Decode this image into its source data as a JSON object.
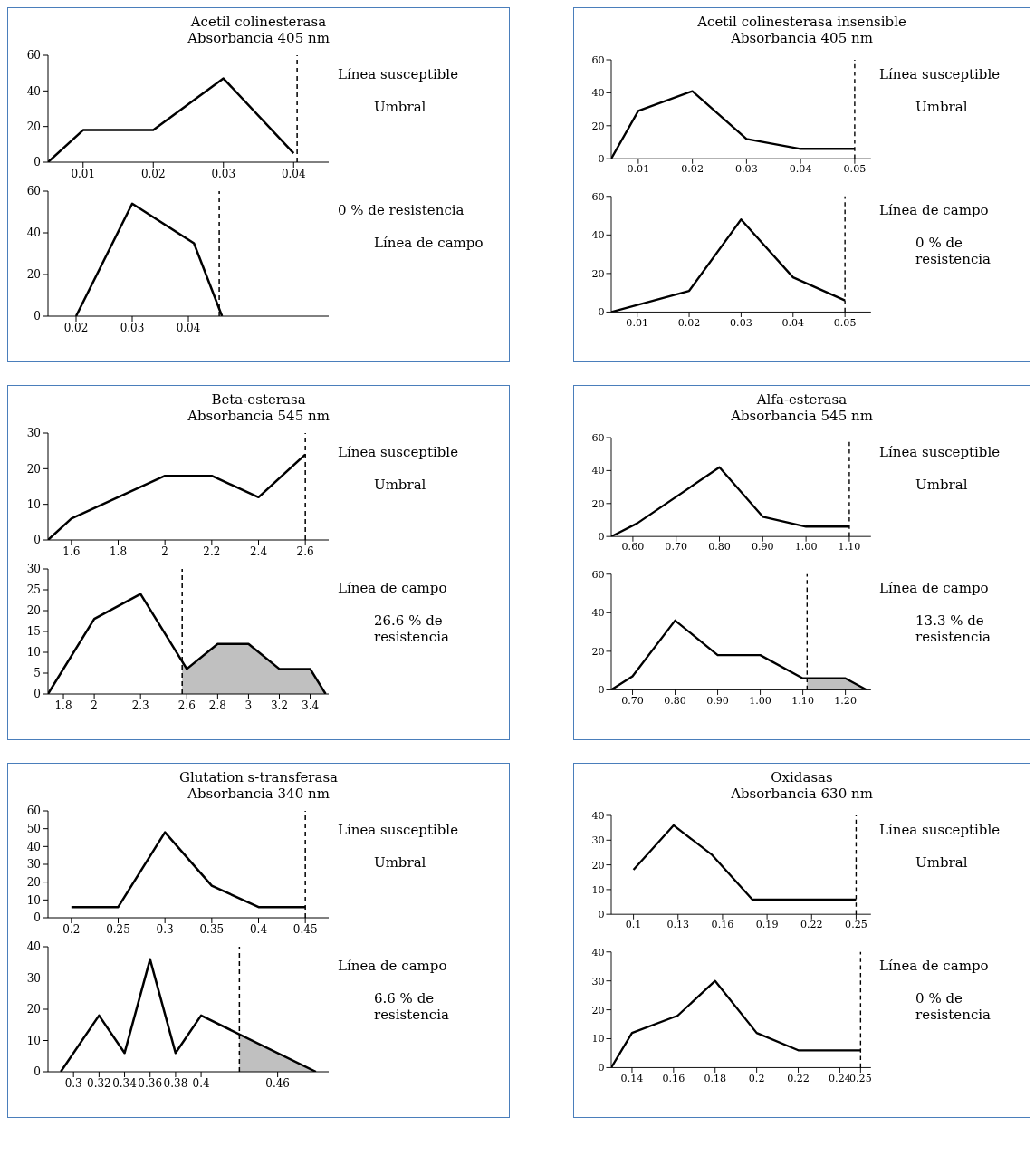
{
  "chart_data": [
    {
      "type": "line",
      "title": "Acetil colinesterasa",
      "subtitle": "Absorbancia 405 nm",
      "marker": "none",
      "xlim": [
        0.005,
        0.045
      ],
      "xticks": [
        0.01,
        0.02,
        0.03,
        0.04
      ],
      "ylim": [
        0,
        60
      ],
      "yticks": [
        0,
        20,
        40,
        60
      ],
      "series": [
        {
          "color": "#000000",
          "x": [
            0.005,
            0.01,
            0.02,
            0.03,
            0.04
          ],
          "values": [
            0,
            18,
            18,
            47,
            5
          ]
        }
      ],
      "ref_lines": [
        {
          "axis": "x",
          "value": 0.0405,
          "line_style": "dashed"
        }
      ],
      "annotations": [
        "Línea susceptible",
        "Umbral"
      ]
    },
    {
      "type": "line",
      "marker": "none",
      "xlim": [
        0.015,
        0.065
      ],
      "xticks": [
        0.02,
        0.03,
        0.04
      ],
      "ylim": [
        0,
        60
      ],
      "yticks": [
        0,
        20,
        40,
        60
      ],
      "series": [
        {
          "color": "#000000",
          "x": [
            0.02,
            0.03,
            0.041,
            0.046
          ],
          "values": [
            0,
            54,
            35,
            0
          ]
        }
      ],
      "ref_lines": [
        {
          "axis": "x",
          "value": 0.0455,
          "line_style": "dashed"
        }
      ],
      "annotations": [
        "0 % de resistencia",
        "Línea de campo"
      ]
    },
    {
      "type": "line",
      "title": "Acetil colinesterasa insensible",
      "subtitle": "Absorbancia 405 nm",
      "marker": "none",
      "xlim": [
        0.005,
        0.053
      ],
      "xticks": [
        0.01,
        0.02,
        0.03,
        0.04,
        0.05
      ],
      "ylim": [
        0,
        60
      ],
      "yticks": [
        0,
        20,
        40,
        60
      ],
      "series": [
        {
          "color": "#000000",
          "x": [
            0.005,
            0.01,
            0.02,
            0.03,
            0.04,
            0.05
          ],
          "values": [
            0,
            29,
            41,
            12,
            6,
            6
          ]
        }
      ],
      "ref_lines": [
        {
          "axis": "x",
          "value": 0.05,
          "line_style": "dashed"
        }
      ],
      "annotations": [
        "Línea susceptible",
        "Umbral"
      ]
    },
    {
      "type": "line",
      "marker": "none",
      "xlim": [
        0.005,
        0.055
      ],
      "xticks": [
        0.01,
        0.02,
        0.03,
        0.04,
        0.05
      ],
      "ylim": [
        0,
        60
      ],
      "yticks": [
        0,
        20,
        40,
        60
      ],
      "series": [
        {
          "color": "#000000",
          "x": [
            0.005,
            0.02,
            0.03,
            0.04,
            0.05
          ],
          "values": [
            0,
            11,
            48,
            18,
            6
          ]
        }
      ],
      "ref_lines": [
        {
          "axis": "x",
          "value": 0.05,
          "line_style": "dashed"
        }
      ],
      "annotations": [
        "Línea de campo",
        "0 % de resistencia"
      ]
    },
    {
      "type": "line",
      "title": "Beta-esterasa",
      "subtitle": "Absorbancia 545 nm",
      "marker": "none",
      "xlim": [
        1.5,
        2.7
      ],
      "xticks": [
        1.6,
        1.8,
        2,
        2.2,
        2.4,
        2.6
      ],
      "ylim": [
        0,
        30
      ],
      "yticks": [
        0,
        10,
        20,
        30
      ],
      "series": [
        {
          "color": "#000000",
          "x": [
            1.5,
            1.6,
            2,
            2.2,
            2.4,
            2.6
          ],
          "values": [
            0,
            6,
            18,
            18,
            12,
            24
          ]
        }
      ],
      "ref_lines": [
        {
          "axis": "x",
          "value": 2.6,
          "line_style": "dashed"
        }
      ],
      "annotations": [
        "Línea susceptible",
        "Umbral"
      ]
    },
    {
      "type": "line",
      "marker": "none",
      "xlim": [
        1.7,
        3.52
      ],
      "xticks": [
        1.8,
        2,
        2.3,
        2.6,
        2.8,
        3,
        3.2,
        3.4
      ],
      "ylim": [
        0,
        30
      ],
      "yticks": [
        0,
        5,
        10,
        15,
        20,
        25,
        30
      ],
      "series": [
        {
          "type": "area",
          "color": "#c0c0c0",
          "x": [
            2.57,
            2.6,
            2.8,
            3,
            3.2,
            3.4,
            3.5
          ],
          "values": [
            8,
            6,
            12,
            12,
            6,
            6,
            0
          ]
        },
        {
          "color": "#000000",
          "x": [
            1.7,
            2,
            2.3,
            2.6,
            2.8,
            3,
            3.2,
            3.4,
            3.5
          ],
          "values": [
            0,
            18,
            24,
            6,
            12,
            12,
            6,
            6,
            0
          ]
        }
      ],
      "ref_lines": [
        {
          "axis": "x",
          "value": 2.57,
          "line_style": "dashed"
        }
      ],
      "annotations": [
        "Línea de campo",
        "26.6 % de resistencia"
      ]
    },
    {
      "type": "line",
      "title": "Alfa-esterasa",
      "subtitle": "Absorbancia 545 nm",
      "marker": "none",
      "xlim": [
        0.55,
        1.15
      ],
      "xticks": [
        {
          "value": 0.6,
          "label": "0.60"
        },
        {
          "value": 0.7,
          "label": "0.70"
        },
        {
          "value": 0.8,
          "label": "0.80"
        },
        {
          "value": 0.9,
          "label": "0.90"
        },
        {
          "value": 1,
          "label": "1.00"
        },
        {
          "value": 1.1,
          "label": "1.10"
        }
      ],
      "ylim": [
        0,
        60
      ],
      "yticks": [
        0,
        20,
        40,
        60
      ],
      "series": [
        {
          "color": "#000000",
          "x": [
            0.55,
            0.61,
            0.8,
            0.9,
            1,
            1.1
          ],
          "values": [
            0,
            8,
            42,
            12,
            6,
            6
          ]
        }
      ],
      "ref_lines": [
        {
          "axis": "x",
          "value": 1.1,
          "line_style": "dashed"
        }
      ],
      "annotations": [
        "Línea susceptible",
        "Umbral"
      ]
    },
    {
      "type": "line",
      "marker": "none",
      "xlim": [
        0.65,
        1.26
      ],
      "xticks": [
        {
          "value": 0.7,
          "label": "0.70"
        },
        {
          "value": 0.8,
          "label": "0.80"
        },
        {
          "value": 0.9,
          "label": "0.90"
        },
        {
          "value": 1,
          "label": "1.00"
        },
        {
          "value": 1.1,
          "label": "1.10"
        },
        {
          "value": 1.2,
          "label": "1.20"
        }
      ],
      "ylim": [
        0,
        60
      ],
      "yticks": [
        0,
        20,
        40,
        60
      ],
      "series": [
        {
          "type": "area",
          "color": "#c0c0c0",
          "x": [
            1.11,
            1.2,
            1.25
          ],
          "values": [
            6,
            6,
            0
          ]
        },
        {
          "color": "#000000",
          "x": [
            0.65,
            0.7,
            0.8,
            0.9,
            1,
            1.1,
            1.2,
            1.25
          ],
          "values": [
            0,
            7,
            36,
            18,
            18,
            6,
            6,
            0
          ]
        }
      ],
      "ref_lines": [
        {
          "axis": "x",
          "value": 1.11,
          "line_style": "dashed"
        }
      ],
      "annotations": [
        "Línea de campo",
        "13.3 % de resistencia"
      ]
    },
    {
      "type": "line",
      "title": "Glutation s-transferasa",
      "subtitle": "Absorbancia 340 nm",
      "marker": "none",
      "xlim": [
        0.175,
        0.475
      ],
      "xticks": [
        0.2,
        0.25,
        0.3,
        0.35,
        0.4,
        0.45
      ],
      "ylim": [
        0,
        60
      ],
      "yticks": [
        0,
        10,
        20,
        30,
        40,
        50,
        60
      ],
      "series": [
        {
          "color": "#000000",
          "x": [
            0.2,
            0.25,
            0.3,
            0.35,
            0.4,
            0.45
          ],
          "values": [
            6,
            6,
            48,
            18,
            6,
            6
          ]
        }
      ],
      "ref_lines": [
        {
          "axis": "x",
          "value": 0.45,
          "line_style": "dashed"
        }
      ],
      "annotations": [
        "Línea susceptible",
        "Umbral"
      ]
    },
    {
      "type": "line",
      "marker": "none",
      "xlim": [
        0.28,
        0.5
      ],
      "xticks": [
        0.3,
        0.32,
        0.34,
        0.36,
        0.38,
        0.4,
        0.46
      ],
      "ylim": [
        0,
        40
      ],
      "yticks": [
        0,
        10,
        20,
        30,
        40
      ],
      "series": [
        {
          "type": "area",
          "color": "#c0c0c0",
          "x": [
            0.43,
            0.49
          ],
          "values": [
            12,
            0
          ]
        },
        {
          "color": "#000000",
          "x": [
            0.29,
            0.32,
            0.34,
            0.36,
            0.38,
            0.4,
            0.49
          ],
          "values": [
            0,
            18,
            6,
            36,
            6,
            18,
            0
          ]
        }
      ],
      "ref_lines": [
        {
          "axis": "x",
          "value": 0.43,
          "line_style": "dashed"
        }
      ],
      "annotations": [
        "Línea de campo",
        "6.6 % de resistencia"
      ]
    },
    {
      "type": "line",
      "title": "Oxidasas",
      "subtitle": "Absorbancia 630 nm",
      "marker": "none",
      "xlim": [
        0.085,
        0.26
      ],
      "xticks": [
        0.1,
        0.13,
        0.16,
        0.19,
        0.22,
        0.25
      ],
      "ylim": [
        0,
        40
      ],
      "yticks": [
        0,
        10,
        20,
        30,
        40
      ],
      "series": [
        {
          "color": "#000000",
          "x": [
            0.1,
            0.127,
            0.153,
            0.18,
            0.25
          ],
          "values": [
            18,
            36,
            24,
            6,
            6
          ]
        }
      ],
      "ref_lines": [
        {
          "axis": "x",
          "value": 0.25,
          "line_style": "dashed"
        }
      ],
      "annotations": [
        "Línea susceptible",
        "Umbral"
      ]
    },
    {
      "type": "line",
      "marker": "none",
      "xlim": [
        0.13,
        0.255
      ],
      "xticks": [
        0.14,
        0.16,
        0.18,
        0.2,
        0.22,
        0.24,
        0.25
      ],
      "ylim": [
        0,
        40
      ],
      "yticks": [
        0,
        10,
        20,
        30,
        40
      ],
      "series": [
        {
          "color": "#000000",
          "x": [
            0.13,
            0.14,
            0.162,
            0.18,
            0.2,
            0.22,
            0.25
          ],
          "values": [
            0,
            12,
            18,
            30,
            12,
            6,
            6
          ]
        }
      ],
      "ref_lines": [
        {
          "axis": "x",
          "value": 0.25,
          "line_style": "dashed"
        }
      ],
      "annotations": [
        "Línea de campo",
        "0 % de resistencia"
      ]
    }
  ]
}
